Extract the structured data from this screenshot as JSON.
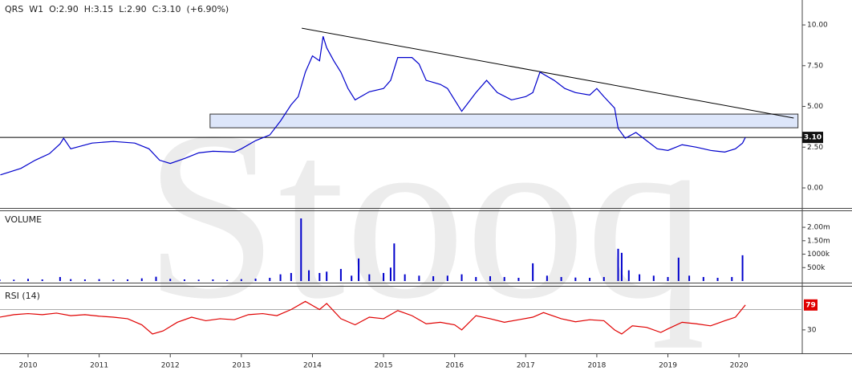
{
  "watermark": "Stooq",
  "chart_data": [
    {
      "type": "line",
      "title": "QRS  W1  O:2.90  H:3.15  L:2.90  C:3.10  (+6.90%)",
      "xlim": [
        2009.605,
        2020.89
      ],
      "ylim": [
        -1.28,
        11.53
      ],
      "yticks": [
        {
          "value": 10,
          "label": "10.00"
        },
        {
          "value": 7.5,
          "label": "7.50"
        },
        {
          "value": 5,
          "label": "5.00"
        },
        {
          "value": 2.5,
          "label": "2.50"
        },
        {
          "value": 0,
          "label": "0.00"
        }
      ],
      "x": [
        2009.61,
        2009.9,
        2010.1,
        2010.3,
        2010.45,
        2010.5,
        2010.6,
        2010.9,
        2011.2,
        2011.5,
        2011.7,
        2011.85,
        2012.0,
        2012.2,
        2012.4,
        2012.6,
        2012.9,
        2013.0,
        2013.2,
        2013.4,
        2013.55,
        2013.7,
        2013.8,
        2013.9,
        2014.0,
        2014.1,
        2014.15,
        2014.2,
        2014.3,
        2014.4,
        2014.5,
        2014.6,
        2014.8,
        2015.0,
        2015.1,
        2015.2,
        2015.4,
        2015.5,
        2015.6,
        2015.8,
        2015.9,
        2016.0,
        2016.1,
        2016.3,
        2016.45,
        2016.6,
        2016.8,
        2017.0,
        2017.1,
        2017.2,
        2017.4,
        2017.55,
        2017.7,
        2017.9,
        2018.0,
        2018.1,
        2018.25,
        2018.3,
        2018.4,
        2018.55,
        2018.7,
        2018.85,
        2019.0,
        2019.2,
        2019.4,
        2019.6,
        2019.8,
        2019.95,
        2020.05,
        2020.09
      ],
      "series": [
        {
          "color": "#0000cc",
          "values": [
            0.8,
            1.2,
            1.7,
            2.1,
            2.7,
            3.05,
            2.4,
            2.75,
            2.85,
            2.75,
            2.4,
            1.7,
            1.5,
            1.8,
            2.15,
            2.25,
            2.2,
            2.4,
            2.9,
            3.25,
            4.1,
            5.1,
            5.6,
            7.1,
            8.1,
            7.8,
            9.3,
            8.6,
            7.8,
            7.1,
            6.1,
            5.4,
            5.9,
            6.1,
            6.6,
            8.0,
            8.0,
            7.6,
            6.6,
            6.35,
            6.1,
            5.4,
            4.7,
            5.85,
            6.6,
            5.85,
            5.4,
            5.6,
            5.85,
            7.1,
            6.6,
            6.1,
            5.85,
            5.7,
            6.1,
            5.6,
            4.9,
            3.65,
            3.05,
            3.4,
            2.9,
            2.4,
            2.3,
            2.65,
            2.5,
            2.3,
            2.2,
            2.4,
            2.75,
            3.1
          ]
        }
      ],
      "trendline": {
        "x": [
          2013.85,
          2020.77
        ],
        "y": [
          9.8,
          4.29
        ]
      },
      "zone": {
        "x": [
          2012.56,
          2020.83
        ],
        "y": [
          3.69,
          4.53
        ],
        "color": "#dde6fa"
      },
      "hline": {
        "value": 3.1,
        "label": "3.10"
      }
    },
    {
      "type": "bar",
      "title": "VOLUME",
      "xlim": [
        2009.605,
        2020.89
      ],
      "ylim": [
        0,
        2630000
      ],
      "yticks": [
        {
          "value": 2000000,
          "label": "2.00m"
        },
        {
          "value": 1500000,
          "label": "1.50m"
        },
        {
          "value": 1000000,
          "label": "1000k"
        },
        {
          "value": 500000,
          "label": "500k"
        }
      ],
      "x": [
        2009.6,
        2009.8,
        2010.0,
        2010.2,
        2010.45,
        2010.6,
        2010.8,
        2011.0,
        2011.2,
        2011.4,
        2011.6,
        2011.8,
        2012.0,
        2012.2,
        2012.4,
        2012.6,
        2012.8,
        2013.0,
        2013.2,
        2013.4,
        2013.55,
        2013.7,
        2013.84,
        2013.95,
        2014.1,
        2014.2,
        2014.4,
        2014.55,
        2014.65,
        2014.8,
        2015.0,
        2015.1,
        2015.15,
        2015.3,
        2015.5,
        2015.7,
        2015.9,
        2016.1,
        2016.3,
        2016.5,
        2016.7,
        2016.9,
        2017.1,
        2017.3,
        2017.5,
        2017.7,
        2017.9,
        2018.1,
        2018.3,
        2018.35,
        2018.45,
        2018.6,
        2018.8,
        2019.0,
        2019.15,
        2019.3,
        2019.5,
        2019.7,
        2019.9,
        2020.05
      ],
      "series": [
        {
          "color": "#0000cc",
          "values": [
            60000,
            50000,
            80000,
            60000,
            150000,
            70000,
            60000,
            70000,
            50000,
            60000,
            100000,
            160000,
            80000,
            60000,
            50000,
            60000,
            40000,
            70000,
            90000,
            120000,
            250000,
            300000,
            2330000,
            400000,
            300000,
            350000,
            450000,
            200000,
            840000,
            250000,
            300000,
            500000,
            1400000,
            250000,
            200000,
            180000,
            200000,
            250000,
            150000,
            180000,
            150000,
            120000,
            660000,
            200000,
            150000,
            130000,
            120000,
            150000,
            1200000,
            1050000,
            400000,
            250000,
            200000,
            150000,
            870000,
            200000,
            150000,
            120000,
            150000,
            960000
          ]
        }
      ]
    },
    {
      "type": "line",
      "title": "RSI (14)",
      "xlim": [
        2009.605,
        2020.89
      ],
      "ylim": [
        -16,
        115
      ],
      "yticks": [
        30
      ],
      "hlines": [
        70
      ],
      "last_value_badge": true,
      "xticks": [
        2010,
        2011,
        2012,
        2013,
        2014,
        2015,
        2016,
        2017,
        2018,
        2019,
        2020
      ],
      "x": [
        2009.6,
        2009.8,
        2010.0,
        2010.2,
        2010.4,
        2010.6,
        2010.8,
        2011.0,
        2011.2,
        2011.4,
        2011.6,
        2011.75,
        2011.9,
        2012.1,
        2012.3,
        2012.5,
        2012.7,
        2012.9,
        2013.1,
        2013.3,
        2013.5,
        2013.7,
        2013.9,
        2014.1,
        2014.2,
        2014.4,
        2014.6,
        2014.8,
        2015.0,
        2015.2,
        2015.4,
        2015.6,
        2015.8,
        2016.0,
        2016.1,
        2016.3,
        2016.5,
        2016.7,
        2016.9,
        2017.1,
        2017.25,
        2017.5,
        2017.7,
        2017.9,
        2018.1,
        2018.25,
        2018.35,
        2018.5,
        2018.7,
        2018.9,
        2019.0,
        2019.2,
        2019.4,
        2019.6,
        2019.8,
        2019.95,
        2020.09
      ],
      "series": [
        {
          "color": "#e00000",
          "values": [
            55,
            60,
            62,
            60,
            63,
            58,
            60,
            57,
            55,
            52,
            40,
            22,
            28,
            45,
            55,
            48,
            52,
            50,
            60,
            62,
            58,
            70,
            86,
            70,
            82,
            52,
            40,
            55,
            52,
            68,
            58,
            42,
            45,
            40,
            30,
            58,
            52,
            45,
            50,
            55,
            64,
            52,
            46,
            50,
            48,
            30,
            22,
            38,
            35,
            25,
            32,
            45,
            42,
            38,
            48,
            55,
            79
          ]
        }
      ]
    }
  ]
}
